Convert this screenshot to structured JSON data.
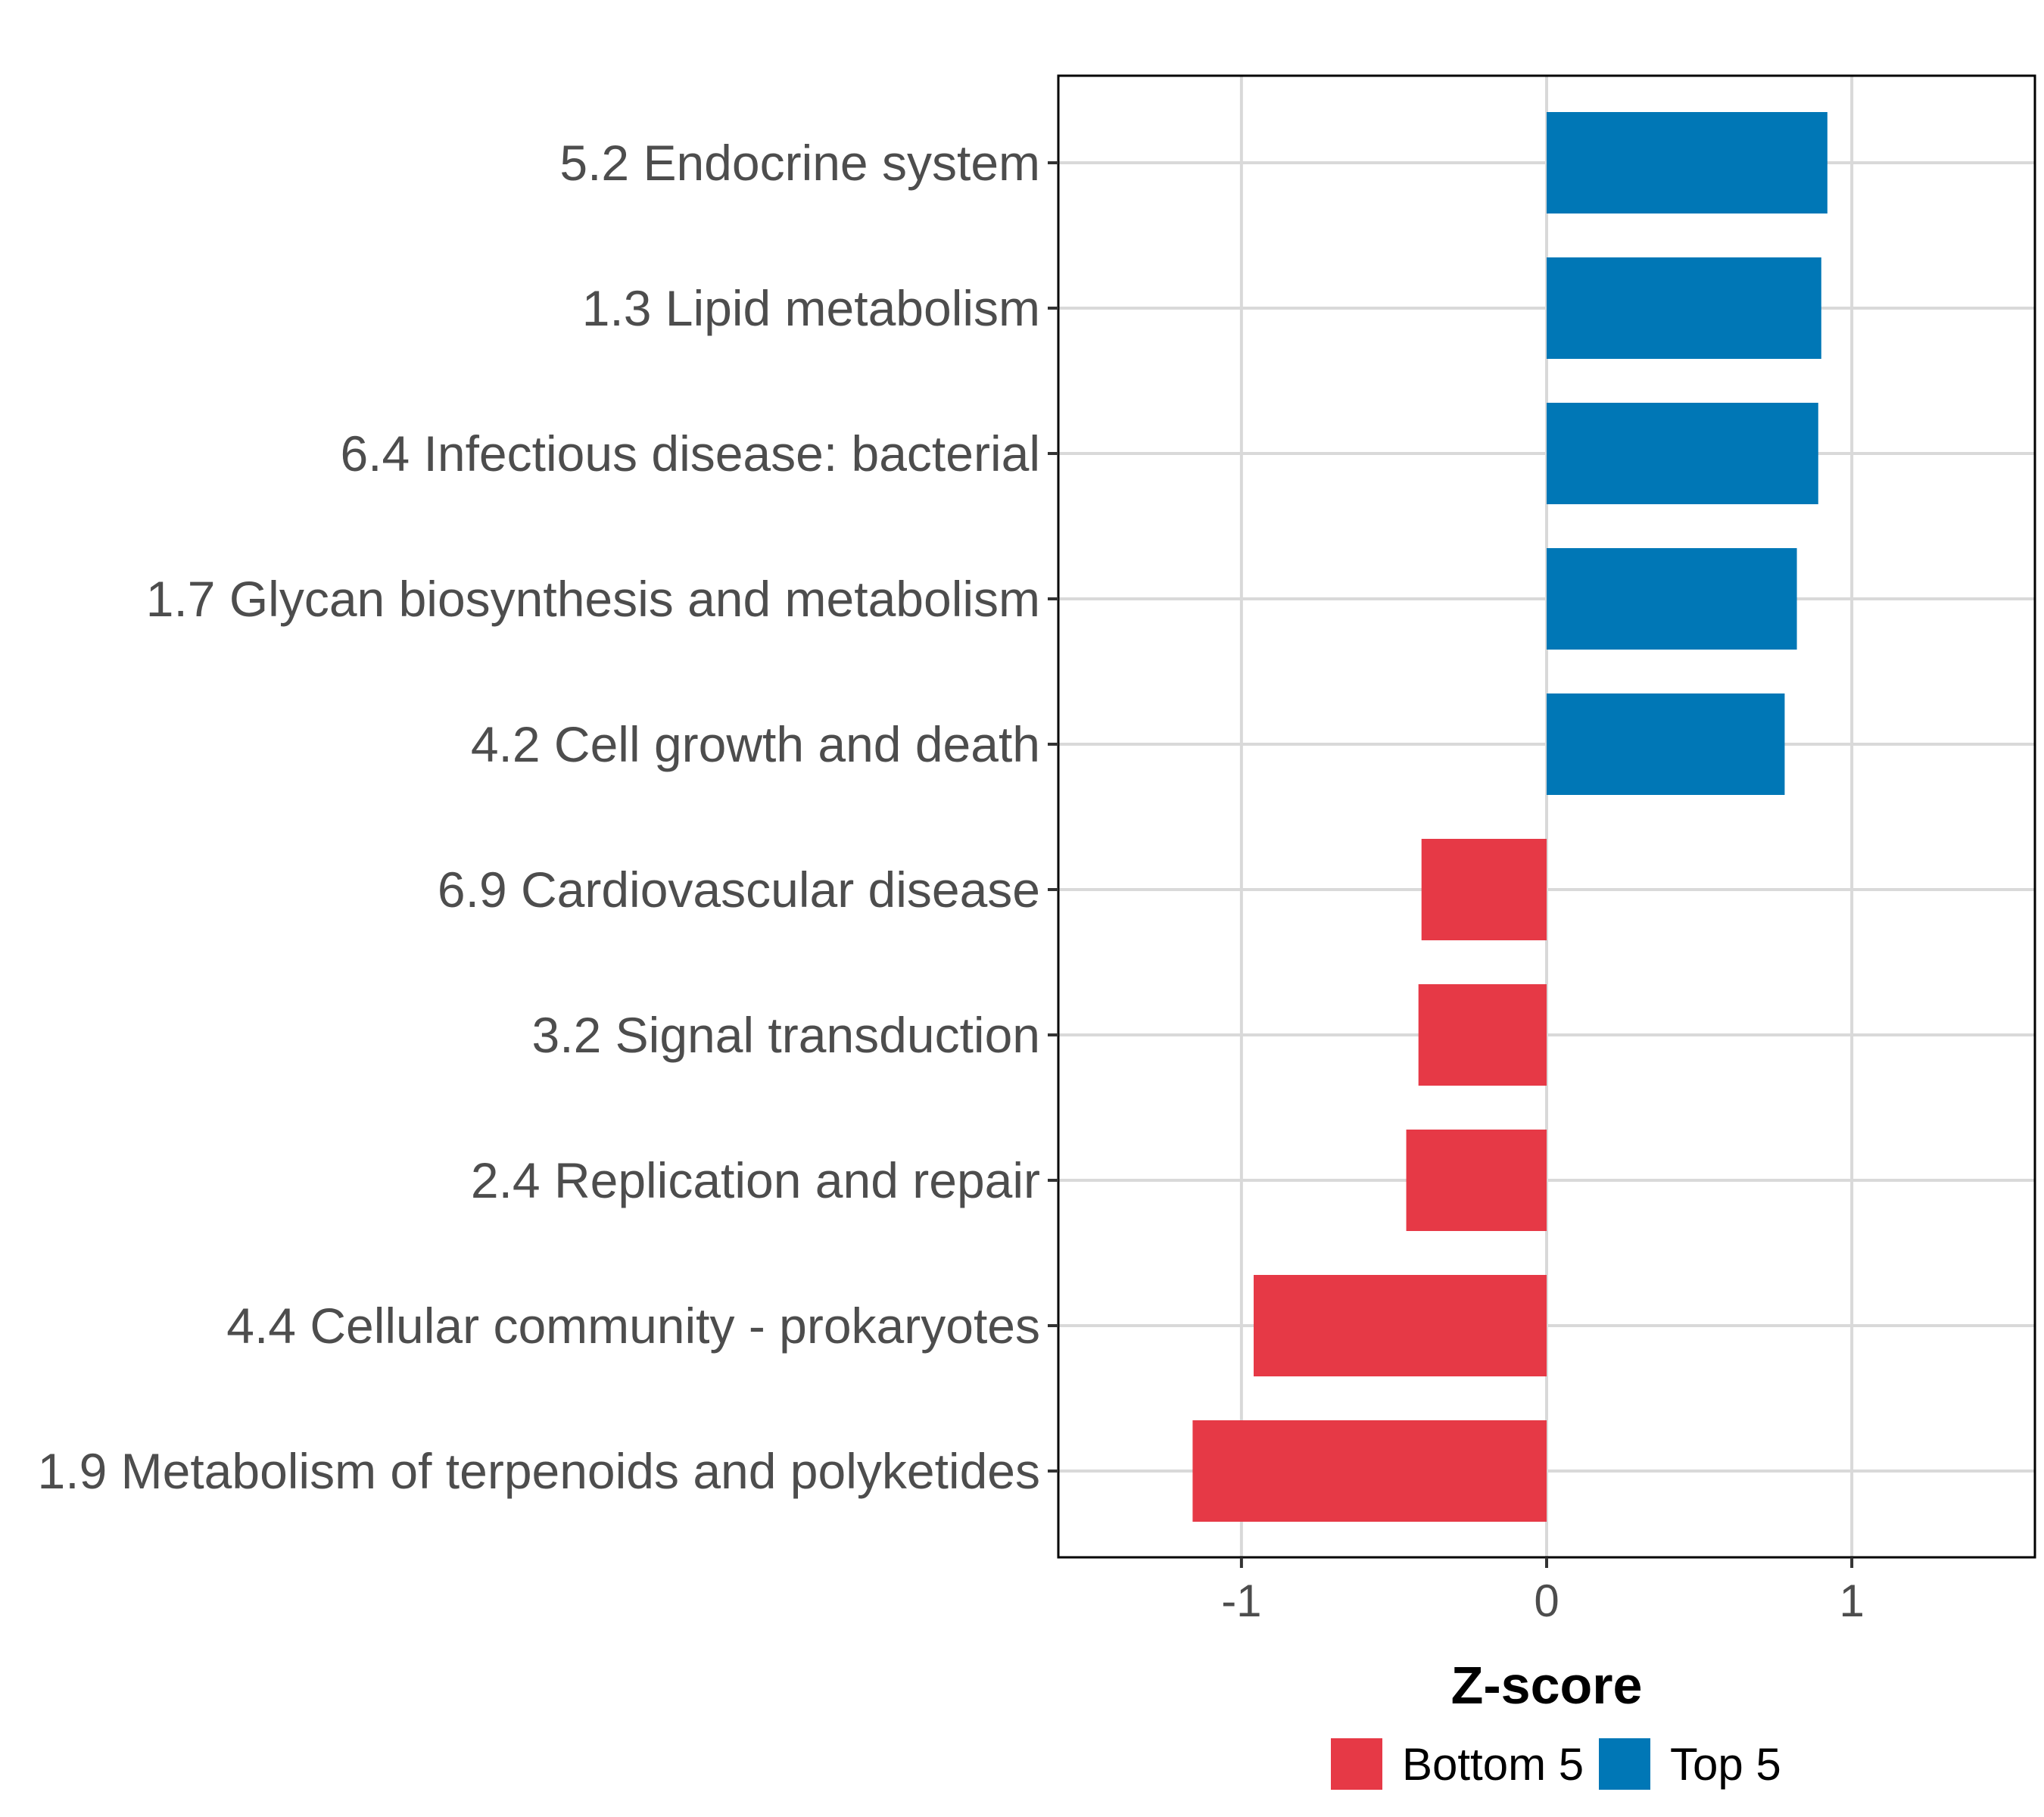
{
  "chart_data": {
    "type": "bar",
    "orientation": "horizontal",
    "title": "",
    "xlabel": "Z-score",
    "ylabel": "",
    "xlim": [
      -1.6,
      1.6
    ],
    "xticks": [
      -1,
      0,
      1
    ],
    "xtick_labels": [
      "-1",
      "0",
      "1"
    ],
    "grid": true,
    "legend_position": "bottom",
    "categories": [
      "5.2 Endocrine system",
      "1.3 Lipid metabolism",
      "6.4 Infectious disease: bacterial",
      "1.7 Glycan biosynthesis and metabolism",
      "4.2 Cell growth and death",
      "6.9 Cardiovascular disease",
      "3.2 Signal transduction",
      "2.4 Replication and repair",
      "4.4 Cellular community - prokaryotes",
      "1.9 Metabolism of terpenoids and polyketides"
    ],
    "values": [
      0.92,
      0.9,
      0.89,
      0.82,
      0.78,
      -0.41,
      -0.42,
      -0.46,
      -0.96,
      -1.16
    ],
    "groups": [
      "Top 5",
      "Top 5",
      "Top 5",
      "Top 5",
      "Top 5",
      "Bottom 5",
      "Bottom 5",
      "Bottom 5",
      "Bottom 5",
      "Bottom 5"
    ],
    "legend": [
      {
        "name": "Bottom 5",
        "color": "#e63946"
      },
      {
        "name": "Top 5",
        "color": "#0077b6"
      }
    ]
  }
}
